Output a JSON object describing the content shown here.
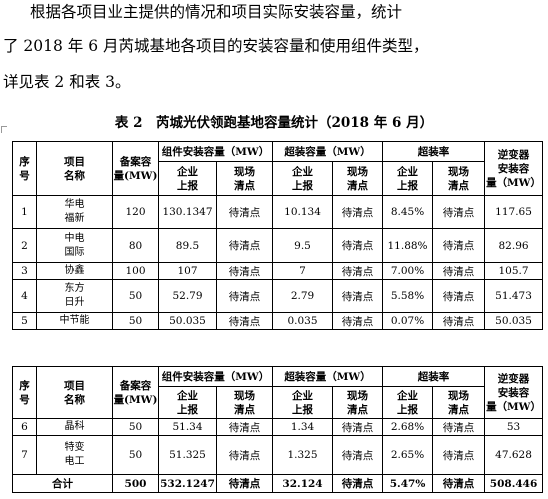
{
  "paragraph": {
    "line1": "根据各项目业主提供的情况和项目实际安装容量，统计",
    "line2": "了 2018 年 6 月芮城基地各项目的安装容量和使用组件类型，",
    "line3": "详见表 2 和表 3。"
  },
  "caption": "表 2　芮城光伏领跑基地容量统计（2018 年 6 月）",
  "headers": {
    "seq": [
      "序",
      "号"
    ],
    "name": [
      "项目",
      "名称"
    ],
    "filing": [
      "备案容",
      "量(MW)"
    ],
    "module": "组件安装容量（MW）",
    "over": "超装容量（MW）",
    "rate": "超装率",
    "inverter": [
      "逆变器",
      "安装容",
      "量（MW）"
    ],
    "reported": [
      "企业",
      "上报"
    ],
    "pending": [
      "现场",
      "清点"
    ]
  },
  "rows1": [
    {
      "seq": "1",
      "name": [
        "华电",
        "福新"
      ],
      "filing": "120",
      "module": "130.1347",
      "module_site": "待清点",
      "over": "10.134",
      "over_site": "待清点",
      "rate": "8.45%",
      "rate_site": "待清点",
      "inverter": "117.65"
    },
    {
      "seq": "2",
      "name": [
        "中电",
        "国际"
      ],
      "filing": "80",
      "module": "89.5",
      "module_site": "待清点",
      "over": "9.5",
      "over_site": "待清点",
      "rate": "11.88%",
      "rate_site": "待清点",
      "inverter": "82.96"
    },
    {
      "seq": "3",
      "name": [
        "协鑫"
      ],
      "filing": "100",
      "module": "107",
      "module_site": "待清点",
      "over": "7",
      "over_site": "待清点",
      "rate": "7.00%",
      "rate_site": "待清点",
      "inverter": "105.7"
    },
    {
      "seq": "4",
      "name": [
        "东方",
        "日升"
      ],
      "filing": "50",
      "module": "52.79",
      "module_site": "待清点",
      "over": "2.79",
      "over_site": "待清点",
      "rate": "5.58%",
      "rate_site": "待清点",
      "inverter": "51.473"
    },
    {
      "seq": "5",
      "name": [
        "中节能"
      ],
      "filing": "50",
      "module": "50.035",
      "module_site": "待清点",
      "over": "0.035",
      "over_site": "待清点",
      "rate": "0.07%",
      "rate_site": "待清点",
      "inverter": "50.035"
    }
  ],
  "rows2": [
    {
      "seq": "6",
      "name": [
        "晶科"
      ],
      "filing": "50",
      "module": "51.34",
      "module_site": "待清点",
      "over": "1.34",
      "over_site": "待清点",
      "rate": "2.68%",
      "rate_site": "待清点",
      "inverter": "53"
    },
    {
      "seq": "7",
      "name": [
        "特变",
        "电工"
      ],
      "filing": "50",
      "module": "51.325",
      "module_site": "待清点",
      "over": "1.325",
      "over_site": "待清点",
      "rate": "2.65%",
      "rate_site": "待清点",
      "inverter": "47.628"
    }
  ],
  "total": {
    "label": "合计",
    "filing": "500",
    "module": "532.1247",
    "module_site": "待清点",
    "over": "32.124",
    "over_site": "待清点",
    "rate": "5.47%",
    "rate_site": "待清点",
    "inverter": "508.446"
  }
}
